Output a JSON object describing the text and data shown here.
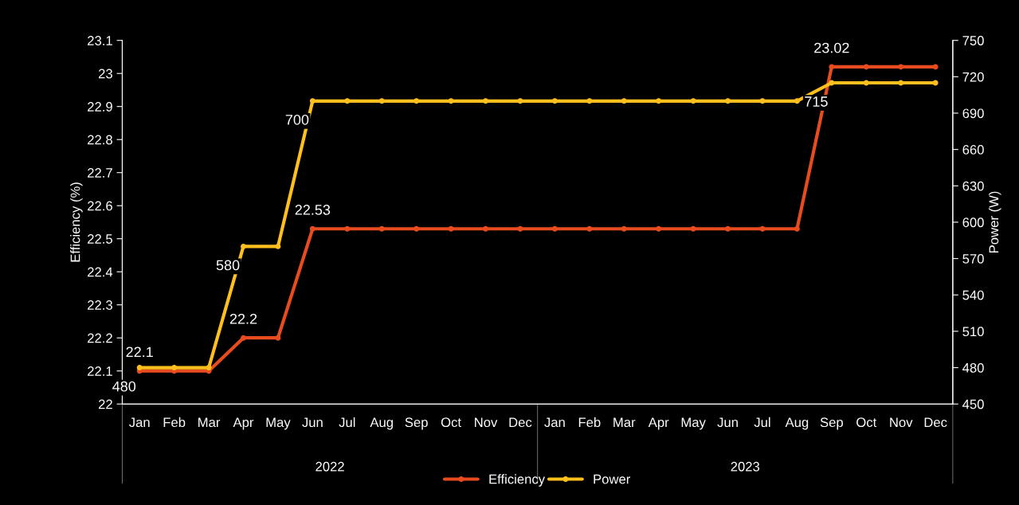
{
  "chart_data": {
    "type": "line",
    "categories": [
      "Jan",
      "Feb",
      "Mar",
      "Apr",
      "May",
      "Jun",
      "Jul",
      "Aug",
      "Sep",
      "Oct",
      "Nov",
      "Dec",
      "Jan",
      "Feb",
      "Mar",
      "Apr",
      "May",
      "Jun",
      "Jul",
      "Aug",
      "Sep",
      "Oct",
      "Nov",
      "Dec"
    ],
    "series": [
      {
        "name": "Efficiency",
        "color": "#e84c1e",
        "values": [
          22.1,
          22.1,
          22.1,
          22.2,
          22.2,
          22.53,
          22.53,
          22.53,
          22.53,
          22.53,
          22.53,
          22.53,
          22.53,
          22.53,
          22.53,
          22.53,
          22.53,
          22.53,
          22.53,
          22.53,
          23.02,
          23.02,
          23.02,
          23.02
        ],
        "value_labels": [
          "22.1",
          null,
          null,
          "22.2",
          null,
          "22.53",
          null,
          null,
          null,
          null,
          null,
          null,
          null,
          null,
          null,
          null,
          null,
          null,
          null,
          null,
          "23.02",
          null,
          null,
          null
        ]
      },
      {
        "name": "Power",
        "color": "#ffc01e",
        "axis": "y2",
        "values": [
          480,
          480,
          480,
          580,
          580,
          700,
          700,
          700,
          700,
          700,
          700,
          700,
          700,
          700,
          700,
          700,
          700,
          700,
          700,
          700,
          715,
          715,
          715,
          715
        ],
        "value_labels": [
          "480",
          null,
          null,
          "580",
          null,
          "700",
          null,
          null,
          null,
          null,
          null,
          null,
          null,
          null,
          null,
          null,
          null,
          null,
          null,
          null,
          "715",
          null,
          null,
          null
        ]
      }
    ],
    "ylabel": "Efficiency (%)",
    "y2label": "Power (W)",
    "ylim": [
      22,
      23.1
    ],
    "yticks": [
      22,
      22.1,
      22.2,
      22.3,
      22.4,
      22.5,
      22.6,
      22.7,
      22.8,
      22.9,
      23,
      23.1
    ],
    "y2lim": [
      450,
      750
    ],
    "y2ticks": [
      450,
      480,
      510,
      540,
      570,
      600,
      630,
      660,
      690,
      720,
      750
    ],
    "annotations": [
      "2022",
      "2023"
    ],
    "marker": "circle",
    "line_style": "solid",
    "grid": false,
    "legend": "bottom"
  }
}
